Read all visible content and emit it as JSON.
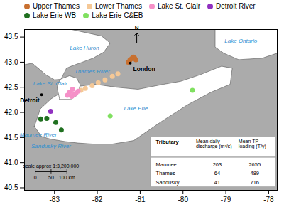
{
  "chart_data": {
    "type": "scatter",
    "color": "#ababab",
    "xlim": [
      -83.7,
      -77.8
    ],
    "ylim": [
      40.45,
      43.65
    ],
    "xticks": [
      -83,
      -82,
      -81,
      -80,
      -79,
      -78
    ],
    "yticks": [
      40.5,
      {
        "value": 41.0,
        "label": "41.0"
      },
      41.5,
      {
        "value": 42.0,
        "label": "42.0"
      },
      42.5,
      {
        "value": 43.0,
        "label": "43.0"
      },
      43.5
    ],
    "grid": false,
    "legend": "top",
    "series": [
      {
        "name": "Upper Thames",
        "color": "#c87030",
        "x": [
          -81.28,
          -81.24,
          -81.2,
          -81.16,
          -81.13,
          -81.1
        ],
        "y": [
          43.0,
          43.04,
          43.07,
          43.1,
          43.08,
          43.05
        ]
      },
      {
        "name": "Lower Thames",
        "color": "#f5c896",
        "x": [
          -81.52,
          -81.65,
          -81.82,
          -81.98,
          -82.12,
          -82.28,
          -82.38
        ],
        "y": [
          42.77,
          42.72,
          42.65,
          42.59,
          42.53,
          42.48,
          42.44
        ]
      },
      {
        "name": "Lake St. Clair",
        "color": "#f590c8",
        "x": [
          -82.6,
          -82.55,
          -82.5,
          -82.45,
          -82.58,
          -82.65,
          -82.7
        ],
        "y": [
          42.32,
          42.35,
          42.38,
          42.42,
          42.46,
          42.4,
          42.34
        ]
      },
      {
        "name": "Detroit River",
        "color": "#9030c0",
        "x": [
          -83.09
        ],
        "y": [
          42.02
        ]
      },
      {
        "name": "Lake Erie WB",
        "color": "#207020",
        "x": [
          -83.32,
          -83.18,
          -82.97,
          -82.84
        ],
        "y": [
          41.87,
          41.88,
          41.8,
          41.65
        ]
      },
      {
        "name": "Lake Erie C&EB",
        "color": "#80e060",
        "x": [
          -81.7,
          -79.78
        ],
        "y": [
          41.93,
          42.44
        ]
      }
    ],
    "areas": {
      "color": "#ffffff",
      "polygons": [
        [
          [
            -83.47,
            41.72
          ],
          [
            -83.3,
            41.52
          ],
          [
            -83.1,
            41.47
          ],
          [
            -82.75,
            41.42
          ],
          [
            -82.45,
            41.39
          ],
          [
            -82.1,
            41.37
          ],
          [
            -81.65,
            41.37
          ],
          [
            -81.15,
            41.44
          ],
          [
            -80.5,
            41.82
          ],
          [
            -79.9,
            42.15
          ],
          [
            -79.35,
            42.4
          ],
          [
            -78.9,
            42.56
          ],
          [
            -78.85,
            42.88
          ],
          [
            -79.1,
            42.92
          ],
          [
            -79.6,
            42.75
          ],
          [
            -80.05,
            42.62
          ],
          [
            -80.45,
            42.56
          ],
          [
            -81.05,
            42.46
          ],
          [
            -81.55,
            42.5
          ],
          [
            -82.05,
            42.56
          ],
          [
            -82.42,
            42.52
          ],
          [
            -82.72,
            42.46
          ],
          [
            -83.08,
            42.27
          ],
          [
            -83.33,
            42.07
          ],
          [
            -83.47,
            41.72
          ]
        ],
        [
          [
            -82.88,
            42.26
          ],
          [
            -82.62,
            42.26
          ],
          [
            -82.47,
            42.34
          ],
          [
            -82.4,
            42.55
          ],
          [
            -82.48,
            42.68
          ],
          [
            -82.65,
            42.73
          ],
          [
            -82.87,
            42.66
          ],
          [
            -82.94,
            42.5
          ],
          [
            -82.88,
            42.26
          ]
        ],
        [
          [
            -83.7,
            42.95
          ],
          [
            -83.7,
            43.65
          ],
          [
            -82.6,
            43.65
          ],
          [
            -81.9,
            43.52
          ],
          [
            -81.7,
            43.38
          ],
          [
            -81.85,
            43.2
          ],
          [
            -82.1,
            43.08
          ],
          [
            -82.35,
            43.0
          ],
          [
            -82.58,
            42.93
          ],
          [
            -82.72,
            42.88
          ],
          [
            -82.85,
            42.66
          ],
          [
            -83.0,
            42.65
          ],
          [
            -83.2,
            42.75
          ],
          [
            -83.52,
            42.98
          ],
          [
            -83.7,
            42.95
          ]
        ],
        [
          [
            -79.25,
            43.65
          ],
          [
            -77.8,
            43.65
          ],
          [
            -77.8,
            43.18
          ],
          [
            -78.15,
            43.08
          ],
          [
            -78.7,
            43.05
          ],
          [
            -79.05,
            43.18
          ],
          [
            -79.25,
            43.3
          ],
          [
            -79.25,
            43.65
          ]
        ]
      ]
    },
    "cities": [
      {
        "name": "London",
        "x": -81.23,
        "y": 42.98
      },
      {
        "name": "Detroit",
        "x": -83.3,
        "y": 42.35
      }
    ],
    "annotations": [
      {
        "text": "Lake Huron",
        "x": -82.3,
        "y": 43.28,
        "color": "#3090d0"
      },
      {
        "text": "Lake Ontario",
        "x": -78.65,
        "y": 43.42,
        "color": "#3090d0"
      },
      {
        "text": "Lake St. Clair",
        "x": -83.1,
        "y": 42.58,
        "color": "#3090d0"
      },
      {
        "text": "Lake Erie",
        "x": -81.1,
        "y": 42.08,
        "color": "#3090d0"
      },
      {
        "text": "Thames River",
        "x": -82.12,
        "y": 42.82,
        "color": "#3090d0"
      },
      {
        "text": "Maumee River",
        "x": -83.38,
        "y": 41.56,
        "color": "#3090d0"
      },
      {
        "text": "Sandusky River",
        "x": -83.08,
        "y": 41.33,
        "color": "#3090d0"
      }
    ],
    "table": {
      "columns": [
        "Tributary",
        "Mean daily\ndischarge (m³/s)",
        "Mean TP\nloading (T/y)"
      ],
      "rows": [
        [
          "Maumee",
          203,
          2655
        ],
        [
          "Thames",
          64,
          489
        ],
        [
          "Sandusky",
          41,
          716
        ]
      ]
    },
    "scale_bar": {
      "label": "scale approx 1:3,200,000",
      "y": 40.82,
      "ticks": [
        {
          "x": -83.45,
          "label": "0"
        },
        {
          "x": -83.08,
          "label": "50"
        },
        {
          "x": -82.71,
          "label": "100 km"
        }
      ]
    },
    "north_arrow": {
      "label": "N",
      "x": -81.08,
      "y": 43.38
    }
  }
}
